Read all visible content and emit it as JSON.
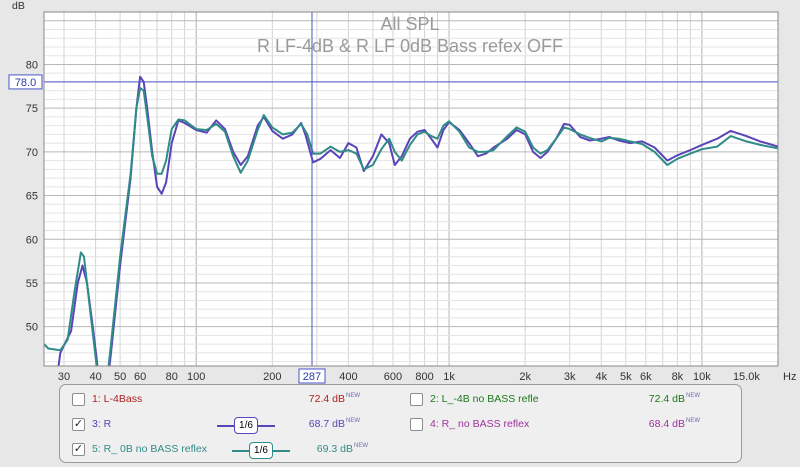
{
  "chart_data": {
    "type": "line",
    "title": "All SPL",
    "subtitle": "R LF-4dB & R LF 0dB Bass refex OFF",
    "ylabel": "dB",
    "xunit": "Hz",
    "xscale": "log",
    "xlim": [
      25,
      20000
    ],
    "ylim": [
      45.5,
      86
    ],
    "y_ticks": [
      50,
      55,
      60,
      65,
      70,
      75,
      80
    ],
    "x_ticks": [
      {
        "v": 30,
        "label": "30"
      },
      {
        "v": 40,
        "label": "40"
      },
      {
        "v": 50,
        "label": "50"
      },
      {
        "v": 60,
        "label": "60"
      },
      {
        "v": 80,
        "label": "80"
      },
      {
        "v": 100,
        "label": "100"
      },
      {
        "v": 200,
        "label": "200"
      },
      {
        "v": 400,
        "label": "400"
      },
      {
        "v": 600,
        "label": "600"
      },
      {
        "v": 800,
        "label": "800"
      },
      {
        "v": 1000,
        "label": "1k"
      },
      {
        "v": 2000,
        "label": "2k"
      },
      {
        "v": 3000,
        "label": "3k"
      },
      {
        "v": 4000,
        "label": "4k"
      },
      {
        "v": 5000,
        "label": "5k"
      },
      {
        "v": 6000,
        "label": "6k"
      },
      {
        "v": 8000,
        "label": "8k"
      },
      {
        "v": 10000,
        "label": "10k"
      },
      {
        "v": 15000,
        "label": "15.0k"
      }
    ],
    "cursor": {
      "x": 287,
      "x_label": "287",
      "y": 78,
      "y_label": "78.0"
    },
    "grid": true,
    "series": [
      {
        "name": "R",
        "color": "#5a44b8",
        "points": [
          [
            25,
            33
          ],
          [
            29,
            47
          ],
          [
            32,
            49.5
          ],
          [
            34,
            55
          ],
          [
            35.5,
            57
          ],
          [
            37,
            55
          ],
          [
            39,
            50
          ],
          [
            40.5,
            46
          ],
          [
            42,
            40
          ],
          [
            44,
            42
          ],
          [
            46,
            47
          ],
          [
            50,
            57
          ],
          [
            55,
            67
          ],
          [
            58,
            75
          ],
          [
            60,
            78.6
          ],
          [
            62,
            78
          ],
          [
            64,
            75
          ],
          [
            67,
            70
          ],
          [
            70,
            66
          ],
          [
            73,
            65.2
          ],
          [
            76,
            66.5
          ],
          [
            80,
            71
          ],
          [
            85,
            73.6
          ],
          [
            90,
            73.3
          ],
          [
            100,
            72.5
          ],
          [
            110,
            72.2
          ],
          [
            120,
            73.6
          ],
          [
            130,
            72.6
          ],
          [
            140,
            70
          ],
          [
            150,
            68.5
          ],
          [
            160,
            69.5
          ],
          [
            175,
            73
          ],
          [
            185,
            74
          ],
          [
            200,
            72.4
          ],
          [
            220,
            71.5
          ],
          [
            240,
            72
          ],
          [
            260,
            73.3
          ],
          [
            270,
            72
          ],
          [
            290,
            68.8
          ],
          [
            310,
            69.2
          ],
          [
            340,
            70.2
          ],
          [
            370,
            69.3
          ],
          [
            400,
            71
          ],
          [
            430,
            70.5
          ],
          [
            460,
            67.8
          ],
          [
            500,
            69.5
          ],
          [
            540,
            72
          ],
          [
            580,
            71
          ],
          [
            610,
            68.5
          ],
          [
            650,
            69.5
          ],
          [
            700,
            71.5
          ],
          [
            750,
            72.3
          ],
          [
            800,
            72.5
          ],
          [
            850,
            71.5
          ],
          [
            900,
            70.5
          ],
          [
            950,
            72.5
          ],
          [
            1000,
            73.4
          ],
          [
            1100,
            72.5
          ],
          [
            1200,
            71
          ],
          [
            1300,
            69.5
          ],
          [
            1400,
            69.8
          ],
          [
            1500,
            70.5
          ],
          [
            1700,
            71.5
          ],
          [
            1850,
            72.5
          ],
          [
            2000,
            72
          ],
          [
            2150,
            70
          ],
          [
            2300,
            69.3
          ],
          [
            2450,
            70
          ],
          [
            2650,
            71.5
          ],
          [
            2850,
            73.2
          ],
          [
            3000,
            73.1
          ],
          [
            3300,
            71.7
          ],
          [
            3600,
            71.3
          ],
          [
            4000,
            71.5
          ],
          [
            4300,
            71.7
          ],
          [
            4700,
            71.3
          ],
          [
            5200,
            71
          ],
          [
            5800,
            71.2
          ],
          [
            6500,
            70.5
          ],
          [
            7300,
            69
          ],
          [
            8000,
            69.6
          ],
          [
            9000,
            70.2
          ],
          [
            10000,
            70.8
          ],
          [
            11500,
            71.5
          ],
          [
            13000,
            72.4
          ],
          [
            15000,
            71.8
          ],
          [
            17000,
            71.2
          ],
          [
            20000,
            70.6
          ]
        ]
      },
      {
        "name": "R_ 0B no BASS reflex",
        "color": "#2f8c87",
        "points": [
          [
            25,
            48
          ],
          [
            26,
            47.5
          ],
          [
            29,
            47.3
          ],
          [
            31,
            48.5
          ],
          [
            33,
            54
          ],
          [
            35,
            58.5
          ],
          [
            36,
            58
          ],
          [
            38,
            52
          ],
          [
            40,
            46.5
          ],
          [
            41,
            44
          ],
          [
            42,
            40
          ],
          [
            44,
            43
          ],
          [
            46,
            48
          ],
          [
            50,
            58
          ],
          [
            55,
            67.5
          ],
          [
            58,
            75
          ],
          [
            60,
            77.3
          ],
          [
            62,
            77
          ],
          [
            64,
            74
          ],
          [
            67,
            69.5
          ],
          [
            70,
            67.5
          ],
          [
            73,
            67.5
          ],
          [
            76,
            69
          ],
          [
            80,
            72.6
          ],
          [
            85,
            73.7
          ],
          [
            90,
            73.6
          ],
          [
            100,
            72.6
          ],
          [
            110,
            72.5
          ],
          [
            120,
            73.2
          ],
          [
            130,
            72.3
          ],
          [
            140,
            69.5
          ],
          [
            150,
            67.6
          ],
          [
            160,
            69
          ],
          [
            175,
            72.5
          ],
          [
            185,
            74.2
          ],
          [
            200,
            72.8
          ],
          [
            220,
            72
          ],
          [
            240,
            72.2
          ],
          [
            260,
            73.2
          ],
          [
            275,
            72
          ],
          [
            290,
            69.8
          ],
          [
            310,
            69.8
          ],
          [
            340,
            70.6
          ],
          [
            370,
            70
          ],
          [
            400,
            70.2
          ],
          [
            430,
            69.8
          ],
          [
            460,
            68
          ],
          [
            500,
            68.5
          ],
          [
            540,
            70.3
          ],
          [
            580,
            71.5
          ],
          [
            610,
            70
          ],
          [
            650,
            69
          ],
          [
            700,
            70.8
          ],
          [
            750,
            72
          ],
          [
            800,
            72.3
          ],
          [
            850,
            71.8
          ],
          [
            900,
            71.5
          ],
          [
            950,
            73
          ],
          [
            1000,
            73.5
          ],
          [
            1100,
            72.3
          ],
          [
            1200,
            70.5
          ],
          [
            1300,
            70
          ],
          [
            1400,
            70
          ],
          [
            1500,
            70.2
          ],
          [
            1700,
            71.8
          ],
          [
            1850,
            72.8
          ],
          [
            2000,
            72.3
          ],
          [
            2150,
            70.5
          ],
          [
            2300,
            69.8
          ],
          [
            2450,
            70.2
          ],
          [
            2650,
            71.5
          ],
          [
            2850,
            72.8
          ],
          [
            3000,
            72.6
          ],
          [
            3300,
            72
          ],
          [
            3600,
            71.6
          ],
          [
            4000,
            71.2
          ],
          [
            4300,
            71.6
          ],
          [
            4700,
            71.5
          ],
          [
            5200,
            71.2
          ],
          [
            5800,
            70.9
          ],
          [
            6500,
            70
          ],
          [
            7300,
            68.5
          ],
          [
            8000,
            69.2
          ],
          [
            9000,
            69.8
          ],
          [
            10000,
            70.3
          ],
          [
            11500,
            70.6
          ],
          [
            13000,
            71.8
          ],
          [
            15000,
            71.2
          ],
          [
            17000,
            70.8
          ],
          [
            20000,
            70.4
          ]
        ]
      }
    ]
  },
  "legend": [
    {
      "label": "1: L-4Bass",
      "label_color": "#b02020",
      "value": "72.4 dB",
      "value_color": "#b02020",
      "checked": false,
      "smoothing": ""
    },
    {
      "label": "2: L_-4B no BASS refle",
      "label_color": "#1a7a1a",
      "value": "72.4 dB",
      "value_color": "#1a7a1a",
      "checked": false,
      "smoothing": ""
    },
    {
      "label": "3: R",
      "label_color": "#5a44b8",
      "value": "68.7 dB",
      "value_color": "#5a44b8",
      "checked": true,
      "smoothing": "1/6"
    },
    {
      "label": "4: R_ no BASS reflex",
      "label_color": "#a030a0",
      "value": "68.4 dB",
      "value_color": "#a030a0",
      "checked": false,
      "smoothing": ""
    },
    {
      "label": "5: R_ 0B no BASS reflex",
      "label_color": "#2f8c87",
      "value": "69.3 dB",
      "value_color": "#2f8c87",
      "checked": true,
      "smoothing": "1/6"
    }
  ],
  "new_tag": "NEW"
}
